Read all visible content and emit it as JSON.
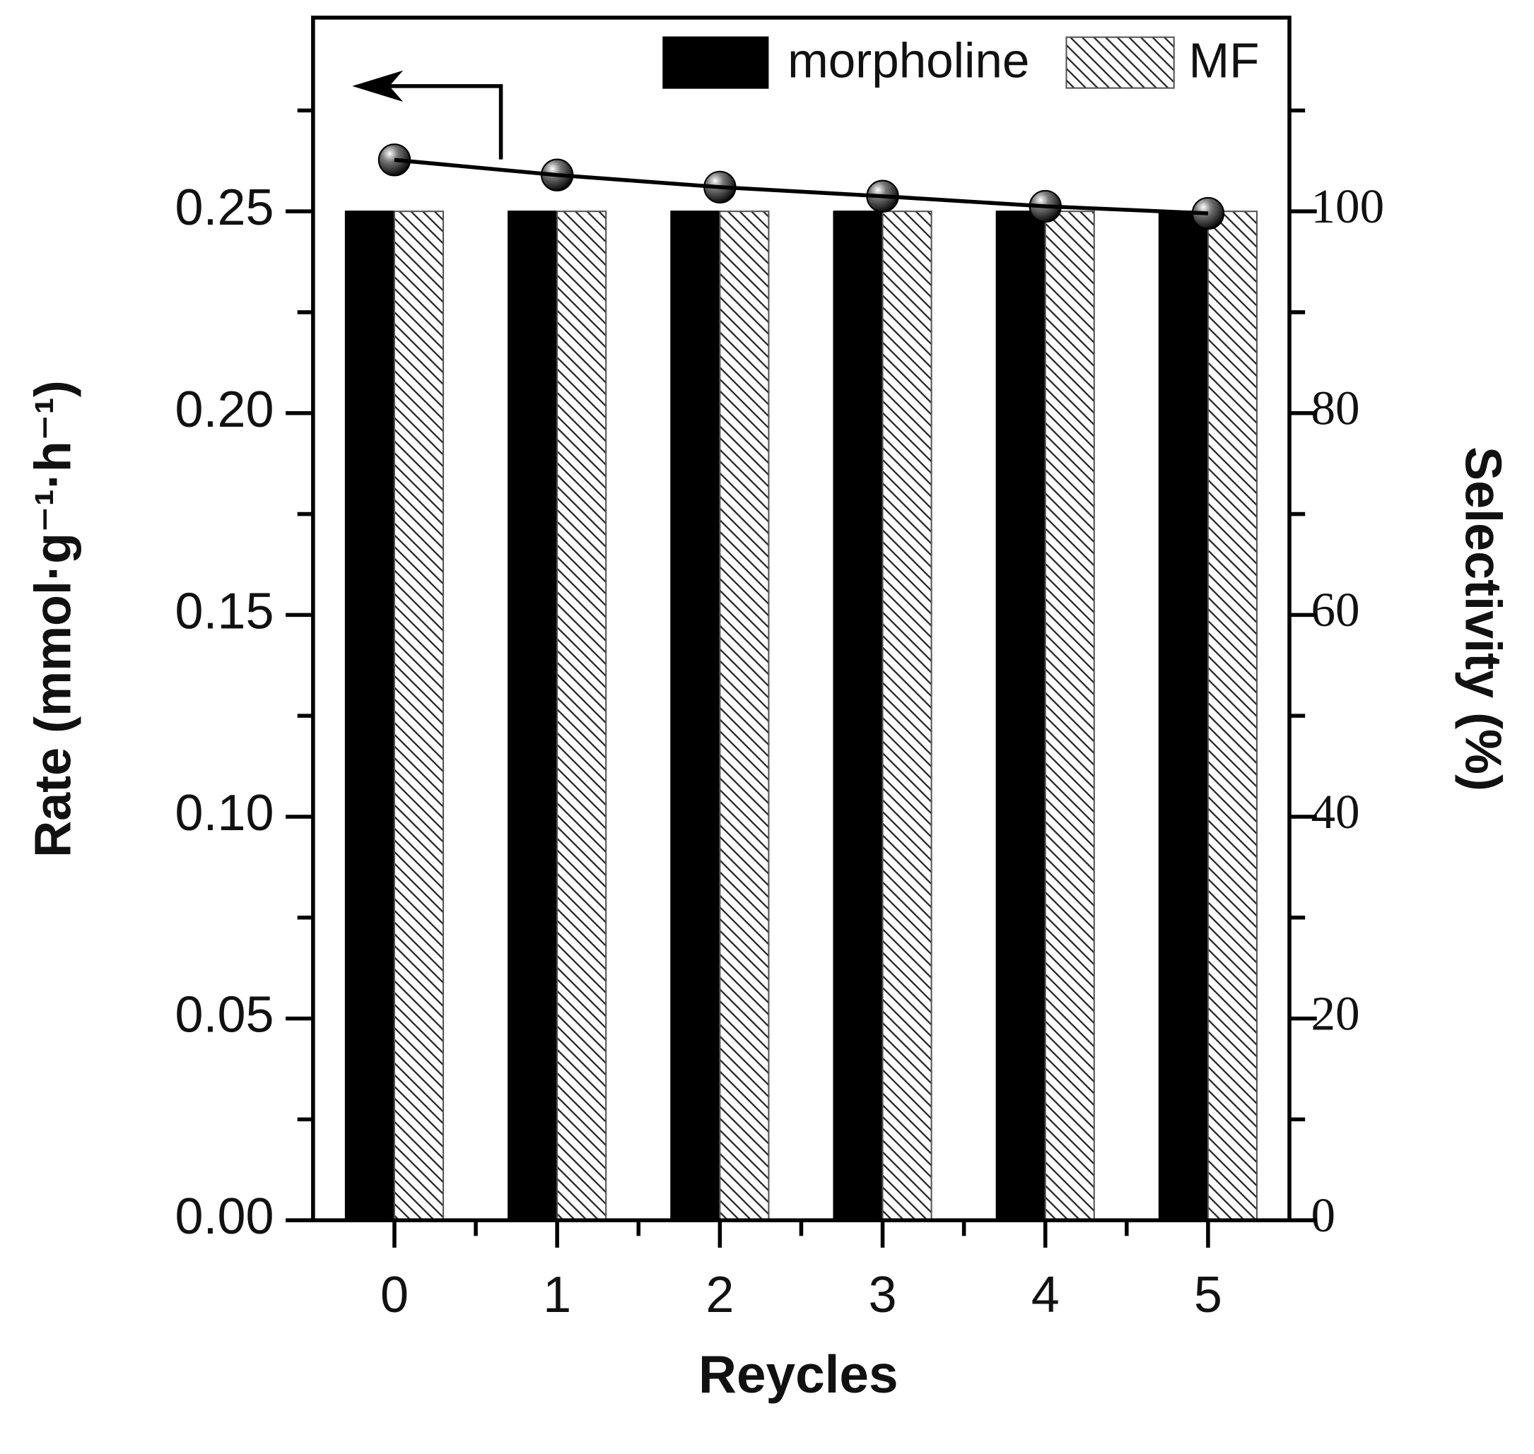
{
  "chart_data": {
    "type": "bar",
    "xlabel": "Reycles",
    "ylabel": "Rate (mmol·g⁻¹·h⁻¹)",
    "y2label": "Selectivity (%)",
    "x": [
      0,
      1,
      2,
      3,
      4,
      5
    ],
    "xlim": [
      -0.5,
      5.5
    ],
    "xticks": [
      0,
      1,
      2,
      3,
      4,
      5
    ],
    "ylim": [
      0,
      0.298
    ],
    "yticks": [
      {
        "value": 0,
        "label": "0.00"
      },
      0.05,
      {
        "value": 0.1,
        "label": "0.10"
      },
      0.15,
      {
        "value": 0.2,
        "label": "0.20"
      },
      0.25
    ],
    "y2lim": [
      0,
      119.2
    ],
    "y2ticks": [
      0,
      20,
      40,
      60,
      80,
      100
    ],
    "series": [
      {
        "name": "morpholine",
        "type": "bar",
        "color": "#000000",
        "values": [
          0.25,
          0.25,
          0.25,
          0.25,
          0.25,
          0.25
        ]
      },
      {
        "name": "MF",
        "type": "bar",
        "color": "#ffffff",
        "pattern": "hatch",
        "values": [
          0.25,
          0.25,
          0.25,
          0.25,
          0.25,
          0.25
        ]
      },
      {
        "type": "line",
        "axis": "y2",
        "color": "#000000",
        "values": [
          105.1,
          103.6,
          102.4,
          101.5,
          100.5,
          99.8
        ]
      }
    ],
    "legend": "top-right"
  }
}
